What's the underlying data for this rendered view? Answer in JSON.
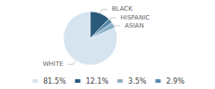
{
  "chart_data": {
    "type": "pie",
    "categories": [
      "WHITE",
      "ASIAN",
      "HISPANIC",
      "BLACK"
    ],
    "values": [
      81.5,
      3.5,
      2.9,
      12.1
    ],
    "value_labels": [
      "81.5%",
      "3.5%",
      "2.9%",
      "12.1%"
    ],
    "colors": [
      "#d6e4f0",
      "#8ab0c8",
      "#5a8aaa",
      "#2a5a7a"
    ],
    "legend": "bottom"
  }
}
